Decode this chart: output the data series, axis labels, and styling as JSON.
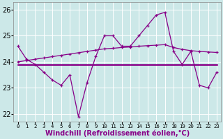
{
  "xlabel": "Windchill (Refroidissement éolien,°C)",
  "xlim": [
    -0.5,
    23.5
  ],
  "ylim": [
    21.7,
    26.3
  ],
  "yticks": [
    22,
    23,
    24,
    25,
    26
  ],
  "xticks": [
    0,
    1,
    2,
    3,
    4,
    5,
    6,
    7,
    8,
    9,
    10,
    11,
    12,
    13,
    14,
    15,
    16,
    17,
    18,
    19,
    20,
    21,
    22,
    23
  ],
  "bg_color": "#cce8e8",
  "line_color": "#880088",
  "grid_color": "#ffffff",
  "line1_y": [
    24.6,
    24.1,
    23.9,
    23.6,
    23.3,
    23.1,
    23.5,
    21.9,
    23.2,
    24.2,
    25.0,
    25.0,
    24.6,
    24.6,
    25.0,
    25.4,
    25.8,
    25.9,
    24.4,
    23.9,
    24.4,
    23.1,
    23.0,
    23.6
  ],
  "line2_y": [
    24.0,
    24.05,
    24.1,
    24.15,
    24.2,
    24.25,
    24.3,
    24.35,
    24.4,
    24.45,
    24.5,
    24.52,
    24.55,
    24.57,
    24.6,
    24.62,
    24.64,
    24.66,
    24.55,
    24.48,
    24.43,
    24.4,
    24.38,
    24.36
  ],
  "line3_y": [
    23.9,
    23.9
  ],
  "font_size_label": 7,
  "font_size_tick": 6.5
}
